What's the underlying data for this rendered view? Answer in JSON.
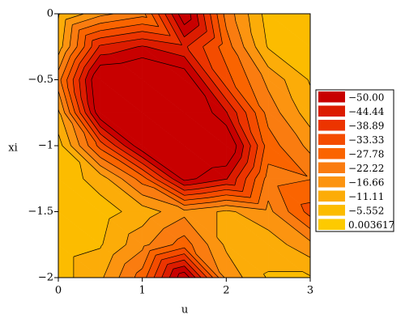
{
  "chart_data": {
    "type": "contour",
    "xlabel": "u",
    "ylabel": "xi",
    "xlim": [
      0,
      3
    ],
    "ylim": [
      -2,
      0
    ],
    "xticks": [
      0,
      1,
      2,
      3
    ],
    "yticks": [
      0,
      {
        "value": -0.5,
        "label": "−0.5"
      },
      {
        "value": -1,
        "label": "−1"
      },
      {
        "value": -1.5,
        "label": "−1.5"
      },
      {
        "value": -2,
        "label": "−2"
      }
    ],
    "x": [
      0,
      0.5,
      1,
      1.5,
      2,
      2.5,
      3
    ],
    "y": [
      0,
      -0.25,
      -0.5,
      -0.75,
      -1,
      -1.25,
      -1.5,
      -1.75,
      -2
    ],
    "z": [
      [
        -5,
        -15,
        -20,
        -55,
        -20,
        -3,
        -2
      ],
      [
        -8,
        -40,
        -45,
        -40,
        -25,
        -5,
        -2
      ],
      [
        -20,
        -58,
        -60,
        -55,
        -30,
        -15,
        -5
      ],
      [
        -10,
        -55,
        -62,
        -60,
        -45,
        -20,
        -8
      ],
      [
        -3,
        -30,
        -55,
        -60,
        -58,
        -25,
        -15
      ],
      [
        -2,
        -8,
        -25,
        -52,
        -45,
        -20,
        -22
      ],
      [
        -2,
        -3,
        -8,
        -15,
        -10,
        -15,
        -30
      ],
      [
        -3,
        -5,
        -15,
        -25,
        -10,
        -8,
        -15
      ],
      [
        -3,
        -10,
        -25,
        -55,
        -15,
        -5,
        -5
      ]
    ],
    "levels": [
      {
        "value": -50,
        "label": "−50.00"
      },
      {
        "value": -44.44,
        "label": "−44.44"
      },
      {
        "value": -38.89,
        "label": "−38.89"
      },
      {
        "value": -33.33,
        "label": "−33.33"
      },
      {
        "value": -27.78,
        "label": "−27.78"
      },
      {
        "value": -22.22,
        "label": "−22.22"
      },
      {
        "value": -16.66,
        "label": "−16.66"
      },
      {
        "value": -11.11,
        "label": "−11.11"
      },
      {
        "value": -5.552,
        "label": "−5.552"
      },
      0.003617
    ],
    "colors": [
      "#c80000",
      "#dc1c00",
      "#ec3400",
      "#f44c00",
      "#fa6400",
      "#fa7c10",
      "#fc9410",
      "#fcac08",
      "#fcbc00",
      "#fdca00"
    ]
  }
}
